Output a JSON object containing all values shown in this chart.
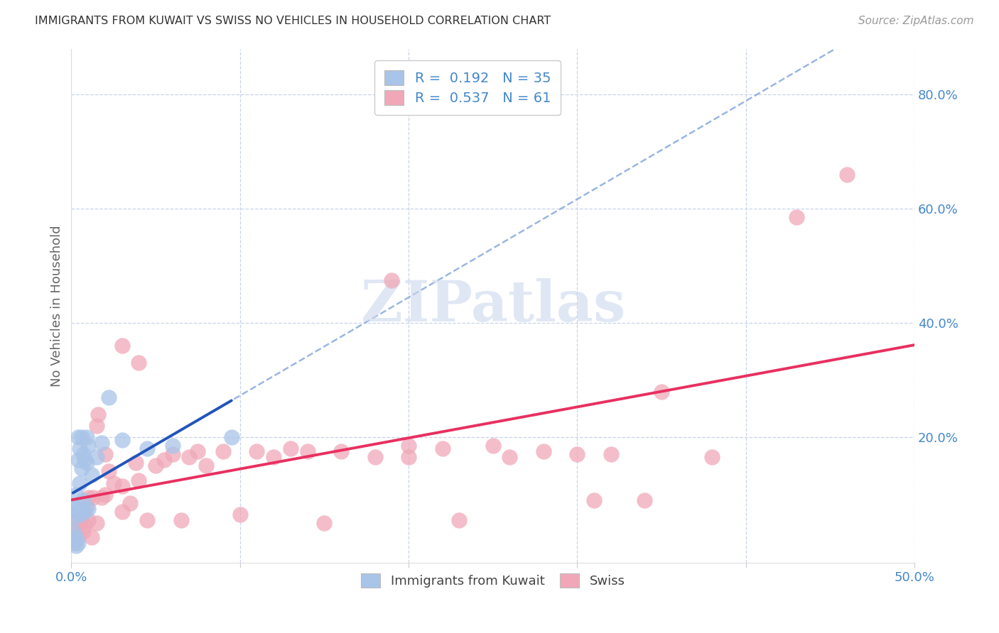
{
  "title": "IMMIGRANTS FROM KUWAIT VS SWISS NO VEHICLES IN HOUSEHOLD CORRELATION CHART",
  "source": "Source: ZipAtlas.com",
  "ylabel": "No Vehicles in Household",
  "xlim": [
    0.0,
    0.5
  ],
  "ylim": [
    -0.02,
    0.88
  ],
  "xtick_labels": [
    "0.0%",
    "",
    "",
    "",
    "",
    "50.0%"
  ],
  "xtick_values": [
    0.0,
    0.1,
    0.2,
    0.3,
    0.4,
    0.5
  ],
  "ytick_labels": [
    "20.0%",
    "40.0%",
    "60.0%",
    "80.0%"
  ],
  "ytick_values": [
    0.2,
    0.4,
    0.6,
    0.8
  ],
  "blue_color": "#a8c4e8",
  "pink_color": "#f0a8b8",
  "blue_line_color": "#2255bb",
  "pink_line_color": "#e83060",
  "blue_dash_color": "#88aadd",
  "axis_label_color": "#4488cc",
  "title_color": "#333333",
  "grid_color": "#c8d4e8",
  "watermark_color": "#ccd8ee",
  "watermark": "ZIPatlas",
  "R_blue": 0.192,
  "N_blue": 35,
  "R_pink": 0.537,
  "N_pink": 61,
  "blue_scatter_x": [
    0.001,
    0.001,
    0.002,
    0.002,
    0.002,
    0.003,
    0.003,
    0.003,
    0.003,
    0.004,
    0.004,
    0.004,
    0.004,
    0.005,
    0.005,
    0.005,
    0.006,
    0.006,
    0.006,
    0.007,
    0.007,
    0.008,
    0.008,
    0.009,
    0.009,
    0.01,
    0.01,
    0.012,
    0.015,
    0.018,
    0.022,
    0.03,
    0.045,
    0.06,
    0.095
  ],
  "blue_scatter_y": [
    0.02,
    0.035,
    0.015,
    0.06,
    0.08,
    0.01,
    0.025,
    0.08,
    0.1,
    0.015,
    0.07,
    0.16,
    0.2,
    0.065,
    0.12,
    0.18,
    0.075,
    0.145,
    0.2,
    0.09,
    0.17,
    0.07,
    0.16,
    0.155,
    0.2,
    0.075,
    0.185,
    0.135,
    0.165,
    0.19,
    0.27,
    0.195,
    0.18,
    0.185,
    0.2
  ],
  "pink_scatter_x": [
    0.001,
    0.002,
    0.003,
    0.004,
    0.005,
    0.006,
    0.007,
    0.008,
    0.009,
    0.01,
    0.01,
    0.012,
    0.013,
    0.015,
    0.015,
    0.016,
    0.018,
    0.02,
    0.02,
    0.022,
    0.025,
    0.03,
    0.03,
    0.03,
    0.035,
    0.038,
    0.04,
    0.04,
    0.045,
    0.05,
    0.055,
    0.06,
    0.065,
    0.07,
    0.075,
    0.08,
    0.09,
    0.1,
    0.11,
    0.12,
    0.13,
    0.14,
    0.15,
    0.16,
    0.18,
    0.19,
    0.2,
    0.2,
    0.22,
    0.23,
    0.25,
    0.26,
    0.28,
    0.3,
    0.31,
    0.32,
    0.34,
    0.35,
    0.38,
    0.43,
    0.46
  ],
  "pink_scatter_y": [
    0.04,
    0.015,
    0.055,
    0.025,
    0.045,
    0.06,
    0.035,
    0.045,
    0.08,
    0.055,
    0.095,
    0.025,
    0.095,
    0.05,
    0.22,
    0.24,
    0.095,
    0.1,
    0.17,
    0.14,
    0.12,
    0.07,
    0.115,
    0.36,
    0.085,
    0.155,
    0.125,
    0.33,
    0.055,
    0.15,
    0.16,
    0.17,
    0.055,
    0.165,
    0.175,
    0.15,
    0.175,
    0.065,
    0.175,
    0.165,
    0.18,
    0.175,
    0.05,
    0.175,
    0.165,
    0.475,
    0.165,
    0.185,
    0.18,
    0.055,
    0.185,
    0.165,
    0.175,
    0.17,
    0.09,
    0.17,
    0.09,
    0.28,
    0.165,
    0.585,
    0.66
  ]
}
